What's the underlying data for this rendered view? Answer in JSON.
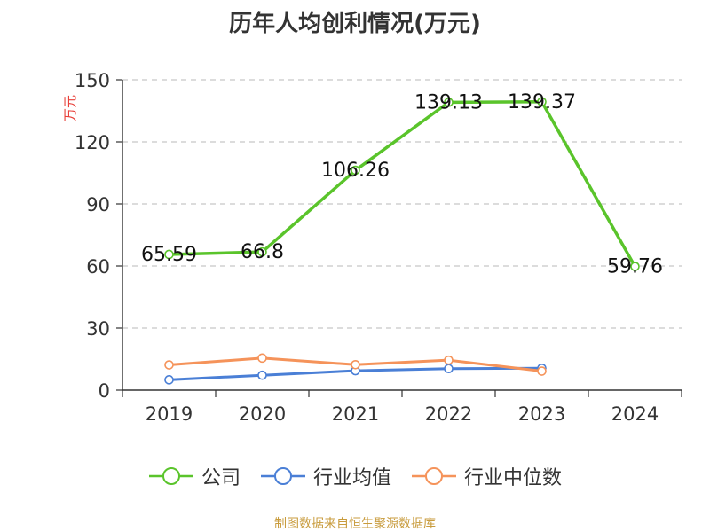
{
  "title": "历年人均创利情况(万元)",
  "source": "制图数据来自恒生聚源数据库",
  "legend": {
    "items": [
      "公司",
      "行业均值",
      "行业中位数"
    ]
  },
  "chart_data": {
    "type": "line",
    "title": "历年人均创利情况(万元)",
    "ylabel": "万元",
    "xlabel": "",
    "categories": [
      "2019",
      "2020",
      "2021",
      "2022",
      "2023",
      "2024"
    ],
    "ylim": [
      0,
      150
    ],
    "yticks": [
      0,
      30,
      60,
      90,
      120,
      150
    ],
    "grid": true,
    "legend_position": "bottom",
    "series": [
      {
        "name": "公司",
        "color": "#5ac42b",
        "values": [
          65.59,
          66.8,
          106.26,
          139.13,
          139.37,
          59.76
        ],
        "labels": [
          "65.59",
          "66.8",
          "106.26",
          "139.13",
          "139.37",
          "59.76"
        ]
      },
      {
        "name": "行业均值",
        "color": "#4a7fd6",
        "values": [
          5.0,
          7.2,
          9.4,
          10.4,
          10.6,
          null
        ]
      },
      {
        "name": "行业中位数",
        "color": "#f5935a",
        "values": [
          12.2,
          15.5,
          12.3,
          14.5,
          9.2,
          null
        ]
      }
    ]
  }
}
